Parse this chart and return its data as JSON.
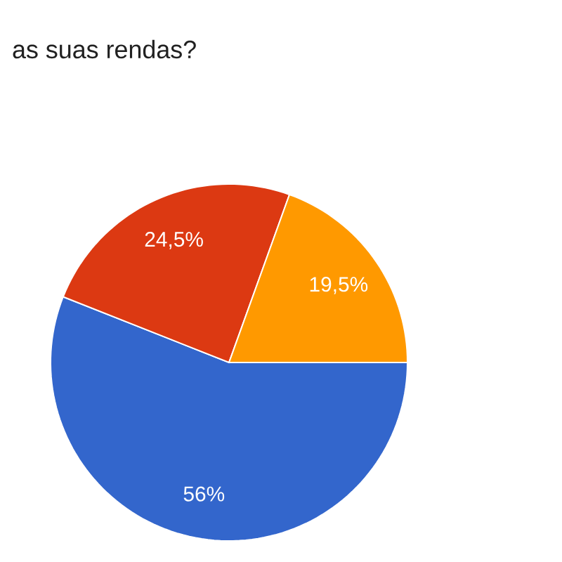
{
  "chart_data": {
    "type": "pie",
    "title": "as suas rendas?",
    "categories": [
      null,
      null,
      null
    ],
    "values": [
      56,
      24.5,
      19.5
    ],
    "colors": [
      "#3366cc",
      "#dc3912",
      "#ff9900"
    ],
    "value_labels": [
      "56%",
      "24,5%",
      "19,5%"
    ]
  }
}
